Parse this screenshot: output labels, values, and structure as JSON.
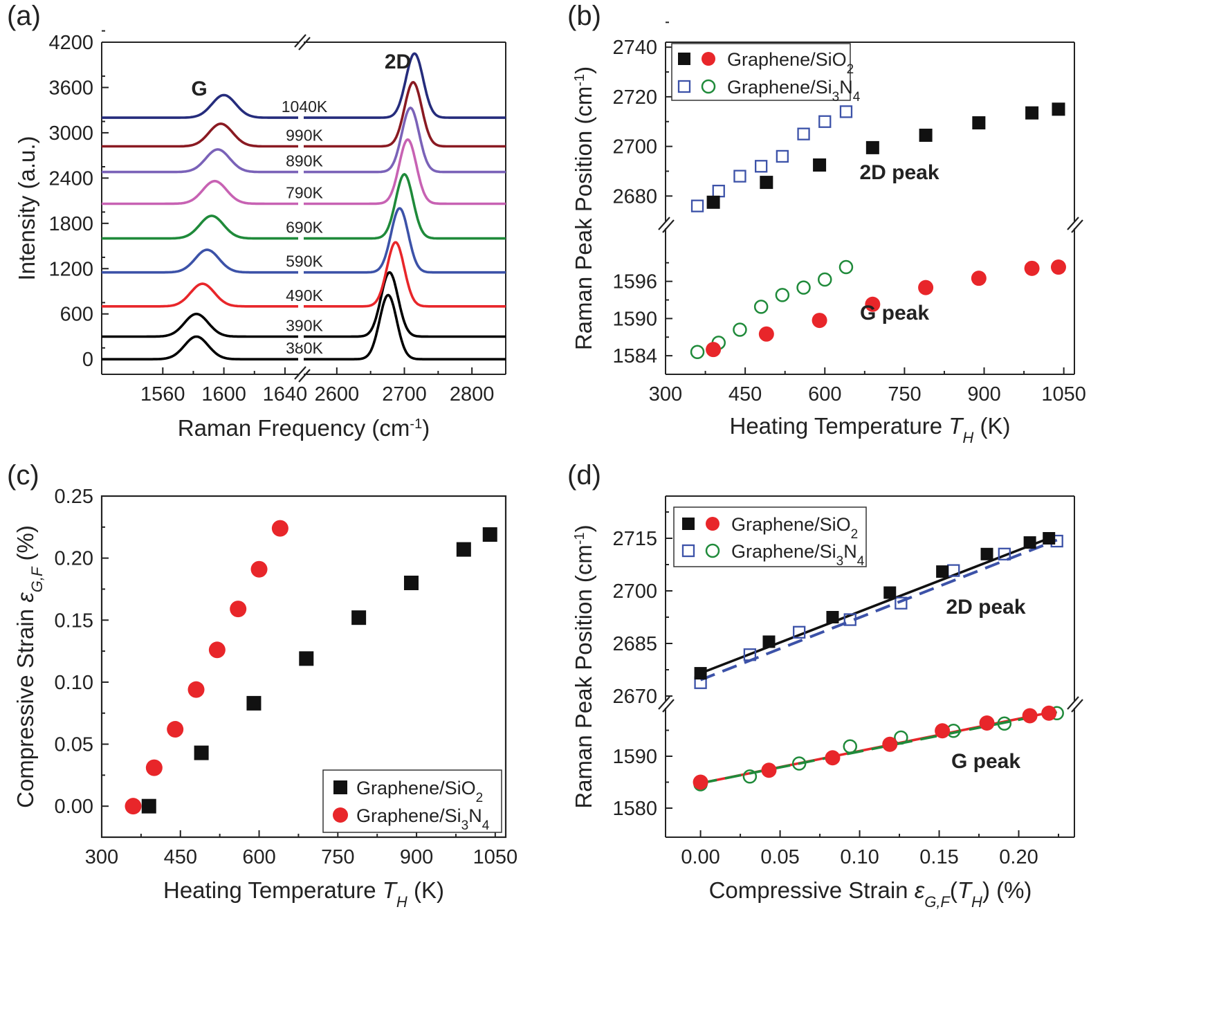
{
  "chart_data": [
    {
      "panel": "(a)",
      "type": "line",
      "xlabel": "Raman Frequency (cm",
      "xlabel_sup": "-1",
      "xlabel_end": ")",
      "ylabel": "Intensity (a.u.)",
      "ylim": [
        -200,
        4200
      ],
      "y_ticks": [
        "0",
        "600",
        "1200",
        "1800",
        "2400",
        "3000",
        "3600",
        "4200"
      ],
      "x_ticks_left": [
        "1560",
        "1600",
        "1640"
      ],
      "x_ticks_right": [
        "2600",
        "2700",
        "2800"
      ],
      "x_segments": [
        [
          1520,
          1650
        ],
        [
          2550,
          2850
        ]
      ],
      "peak_labels": [
        "G",
        "2D"
      ],
      "series": [
        {
          "name": "380K",
          "color": "#000000",
          "baseline": 0,
          "g_center": 1582,
          "g_height": 300,
          "d_center": 2676,
          "d_height": 850
        },
        {
          "name": "390K",
          "color": "#000000",
          "baseline": 300,
          "g_center": 1582,
          "g_height": 300,
          "d_center": 2678,
          "d_height": 850
        },
        {
          "name": "490K",
          "color": "#e8262a",
          "baseline": 700,
          "g_center": 1586,
          "g_height": 300,
          "d_center": 2687,
          "d_height": 850
        },
        {
          "name": "590K",
          "color": "#3c52a8",
          "baseline": 1150,
          "g_center": 1589,
          "g_height": 300,
          "d_center": 2693,
          "d_height": 850
        },
        {
          "name": "690K",
          "color": "#1f8a3a",
          "baseline": 1600,
          "g_center": 1592,
          "g_height": 300,
          "d_center": 2700,
          "d_height": 850
        },
        {
          "name": "790K",
          "color": "#c762b3",
          "baseline": 2060,
          "g_center": 1594,
          "g_height": 300,
          "d_center": 2705,
          "d_height": 850
        },
        {
          "name": "890K",
          "color": "#7a62b8",
          "baseline": 2480,
          "g_center": 1596,
          "g_height": 300,
          "d_center": 2709,
          "d_height": 850
        },
        {
          "name": "990K",
          "color": "#8a1a22",
          "baseline": 2820,
          "g_center": 1598,
          "g_height": 300,
          "d_center": 2713,
          "d_height": 850
        },
        {
          "name": "1040K",
          "color": "#252c7c",
          "baseline": 3200,
          "g_center": 1600,
          "g_height": 300,
          "d_center": 2715,
          "d_height": 850
        }
      ]
    },
    {
      "panel": "(b)",
      "type": "scatter",
      "xlabel": "Heating Temperature ",
      "xlabel_var": "T",
      "xlabel_sub": "H",
      "xlabel_end": " (K)",
      "ylabel": "Raman Peak Position (cm",
      "ylabel_sup": "-1",
      "ylabel_end": ")",
      "xlim": [
        300,
        1070
      ],
      "x_ticks": [
        "300",
        "450",
        "600",
        "750",
        "900",
        "1050"
      ],
      "upper_ylim": [
        2672,
        2742
      ],
      "upper_ticks": [
        "2680",
        "2700",
        "2720",
        "2740"
      ],
      "lower_ylim": [
        1581,
        1604
      ],
      "lower_ticks": [
        "1584",
        "1590",
        "1596"
      ],
      "legend": [
        "Graphene/SiO",
        "Graphene/Si",
        "2",
        "3",
        "N",
        "4"
      ],
      "annotations": [
        "2D peak",
        "G peak"
      ],
      "sio2_T": [
        390,
        490,
        590,
        690,
        790,
        890,
        990,
        1040
      ],
      "sio2_2D": [
        2677.5,
        2685.5,
        2692.5,
        2699.5,
        2704.5,
        2709.5,
        2713.5,
        2715
      ],
      "sio2_G": [
        1585,
        1587.5,
        1589.7,
        1592.3,
        1595,
        1596.5,
        1598.1,
        1598.3
      ],
      "si3n4_T": [
        360,
        400,
        440,
        480,
        520,
        560,
        600,
        640
      ],
      "si3n4_2D": [
        2676,
        2682,
        2688,
        2692,
        2696,
        2705,
        2710,
        2714
      ],
      "si3n4_G": [
        1584.6,
        1586.1,
        1588.2,
        1591.9,
        1593.8,
        1595,
        1596.3,
        1598.3
      ]
    },
    {
      "panel": "(c)",
      "type": "scatter",
      "xlabel": "Heating Temperature ",
      "xlabel_var": "T",
      "xlabel_sub": "H",
      "xlabel_end": " (K)",
      "ylabel": "Compressive Strain ",
      "ylabel_var": "ε",
      "ylabel_sub": "G,F",
      "ylabel_end": " (%)",
      "xlim": [
        300,
        1070
      ],
      "ylim": [
        -0.025,
        0.25
      ],
      "x_ticks": [
        "300",
        "450",
        "600",
        "750",
        "900",
        "1050"
      ],
      "y_ticks": [
        "0.00",
        "0.05",
        "0.10",
        "0.15",
        "0.20",
        "0.25"
      ],
      "legend": [
        "Graphene/SiO",
        "Graphene/Si",
        "2",
        "3",
        "N",
        "4"
      ],
      "sio2_T": [
        390,
        490,
        590,
        690,
        790,
        890,
        990,
        1040
      ],
      "sio2_strain": [
        0.0,
        0.043,
        0.083,
        0.119,
        0.152,
        0.18,
        0.207,
        0.219
      ],
      "si3n4_T": [
        360,
        400,
        440,
        480,
        520,
        560,
        600,
        640
      ],
      "si3n4_strain": [
        0.0,
        0.031,
        0.062,
        0.094,
        0.126,
        0.159,
        0.191,
        0.224
      ]
    },
    {
      "panel": "(d)",
      "type": "scatter",
      "xlabel": "Compressive Strain ",
      "xlabel_var": "ε",
      "xlabel_sub": "G,F",
      "xlabel_mid": "(",
      "xlabel_var2": "T",
      "xlabel_sub2": "H",
      "xlabel_end": ")  (%)",
      "ylabel": "Raman Peak Position (cm",
      "ylabel_sup": "-1",
      "ylabel_end": ")",
      "xlim": [
        -0.022,
        0.235
      ],
      "x_ticks": [
        "0.00",
        "0.05",
        "0.10",
        "0.15",
        "0.20"
      ],
      "upper_ylim": [
        2669,
        2725
      ],
      "upper_ticks": [
        "2670",
        "2685",
        "2700",
        "2715"
      ],
      "lower_ylim": [
        1576,
        1600
      ],
      "lower_ticks": [
        "1580",
        "1590"
      ],
      "legend": [
        "Graphene/SiO",
        "Graphene/Si",
        "2",
        "3",
        "N",
        "4"
      ],
      "annotations": [
        "2D peak",
        "G peak"
      ],
      "sio2_strain": [
        0.0,
        0.043,
        0.083,
        0.119,
        0.152,
        0.18,
        0.207,
        0.219
      ],
      "sio2_2D": [
        2676.5,
        2685.5,
        2692.5,
        2699.5,
        2705.5,
        2710.5,
        2713.8,
        2715
      ],
      "sio2_G": [
        1585,
        1587.3,
        1589.7,
        1592.3,
        1594.9,
        1596.4,
        1597.8,
        1598.3
      ],
      "si3n4_strain": [
        0.0,
        0.031,
        0.062,
        0.094,
        0.126,
        0.159,
        0.191,
        0.224
      ],
      "si3n4_2D": [
        2673.8,
        2681.8,
        2688.2,
        2691.8,
        2696.5,
        2705.8,
        2710.5,
        2714.2
      ],
      "si3n4_G": [
        1584.6,
        1586.1,
        1588.6,
        1591.9,
        1593.6,
        1594.9,
        1596.3,
        1598.3
      ],
      "fit_sio2_2D": [
        2676.5,
        2715
      ],
      "fit_si3n4_2D": [
        2674.6,
        2714.5
      ],
      "fit_G": [
        1584.8,
        1598.4
      ]
    }
  ]
}
